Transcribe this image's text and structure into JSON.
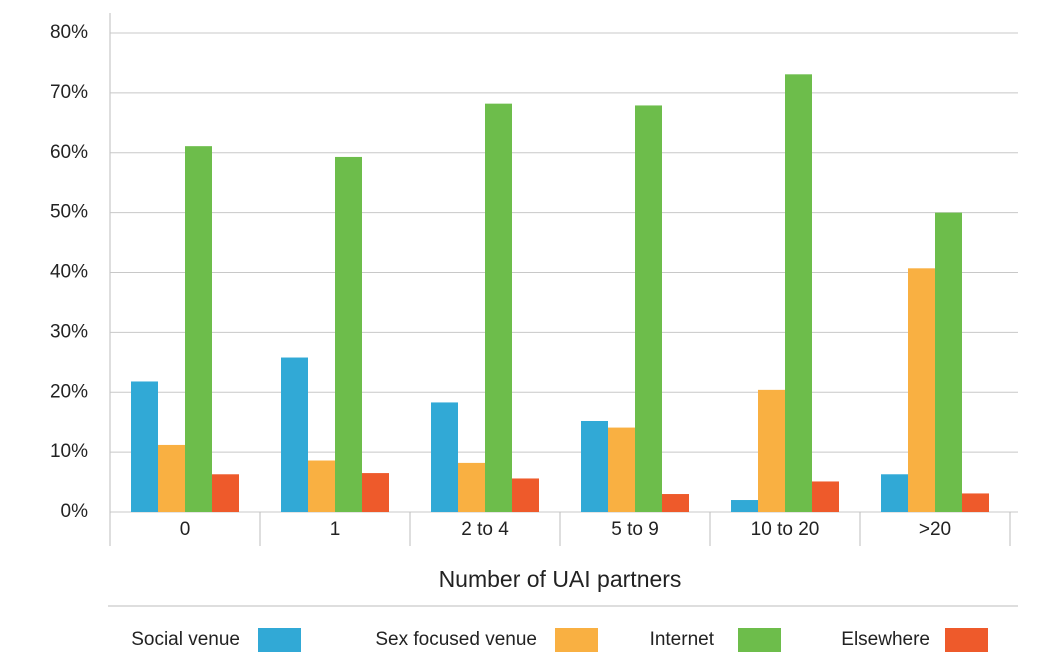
{
  "chart_data": {
    "type": "bar",
    "x_label": "Number of UAI partners",
    "categories": [
      "0",
      "1",
      "2 to 4",
      "5 to 9",
      "10 to 20",
      ">20"
    ],
    "series": [
      {
        "name": "Social venue",
        "color": "#31a9d6",
        "values": [
          21.8,
          25.8,
          18.3,
          15.2,
          2.0,
          6.3
        ]
      },
      {
        "name": "Sex focused venue",
        "color": "#f9b042",
        "values": [
          11.2,
          8.6,
          8.2,
          14.1,
          20.4,
          40.7
        ]
      },
      {
        "name": "Internet",
        "color": "#6dbd4b",
        "values": [
          61.1,
          59.3,
          68.2,
          67.9,
          73.1,
          50.0
        ]
      },
      {
        "name": "Elsewhere",
        "color": "#ee5a2b",
        "values": [
          6.3,
          6.5,
          5.6,
          3.0,
          5.1,
          3.1
        ]
      }
    ],
    "ylim": [
      0,
      80
    ],
    "yticks": [
      {
        "value": 0,
        "label": "0%"
      },
      {
        "value": 10,
        "label": "10%"
      },
      {
        "value": 20,
        "label": "20%"
      },
      {
        "value": 30,
        "label": "30%"
      },
      {
        "value": 40,
        "label": "40%"
      },
      {
        "value": 50,
        "label": "50%"
      },
      {
        "value": 60,
        "label": "60%"
      },
      {
        "value": 70,
        "label": "70%"
      },
      {
        "value": 80,
        "label": "80%"
      }
    ],
    "grid": true,
    "legend": "bottom"
  }
}
